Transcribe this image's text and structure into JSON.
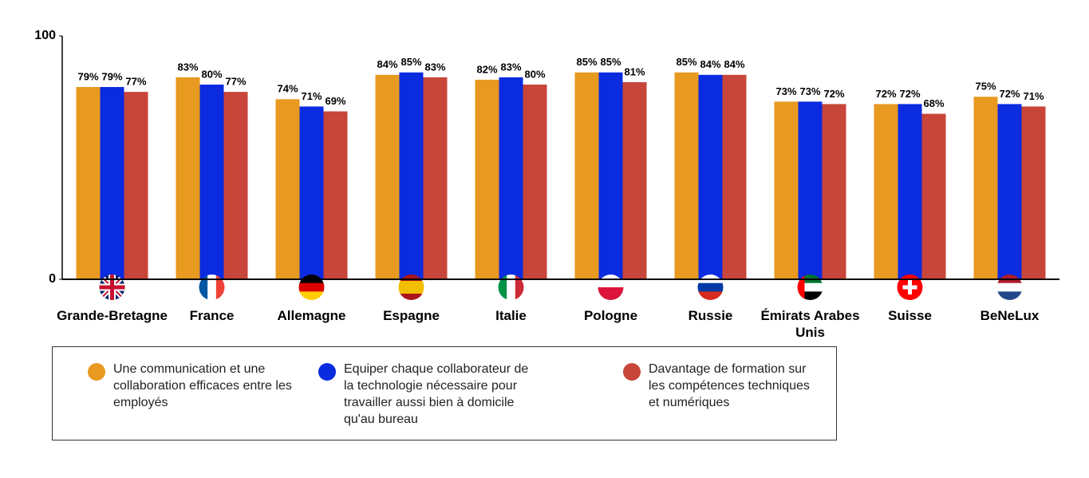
{
  "chart_data": {
    "type": "bar",
    "categories": [
      "Grande-Bretagne",
      "France",
      "Allemagne",
      "Espagne",
      "Italie",
      "Pologne",
      "Russie",
      "Émirats Arabes Unis",
      "Suisse",
      "BeNeLux"
    ],
    "series": [
      {
        "name": "Une communication et une collaboration efficaces entre les employés",
        "color": "#E8991F",
        "values": [
          79,
          83,
          74,
          84,
          82,
          85,
          85,
          73,
          72,
          75
        ],
        "value_labels": [
          "79%",
          "83%",
          "74%",
          "84%",
          "82%",
          "85%",
          "85%",
          "73%",
          "72%",
          "75%"
        ]
      },
      {
        "name": "Equiper chaque collaborateur de la technologie nécessaire pour travailler aussi bien à domicile qu'au bureau",
        "color": "#0A2BE0",
        "values": [
          79,
          80,
          71,
          85,
          83,
          85,
          84,
          73,
          72,
          72
        ],
        "value_labels": [
          "79%",
          "80%",
          "71%",
          "85%",
          "83%",
          "85%",
          "84%",
          "73%",
          "72%",
          "72%"
        ]
      },
      {
        "name": "Davantage de formation sur les compétences techniques et numériques",
        "color": "#C8453A",
        "values": [
          77,
          77,
          69,
          83,
          80,
          81,
          84,
          72,
          68,
          71
        ],
        "value_labels": [
          "77%",
          "77%",
          "69%",
          "83%",
          "80%",
          "81%",
          "84%",
          "72%",
          "68%",
          "71%"
        ]
      }
    ],
    "ylim": [
      0,
      100
    ],
    "yticks": [
      0,
      100
    ],
    "grid": false
  }
}
